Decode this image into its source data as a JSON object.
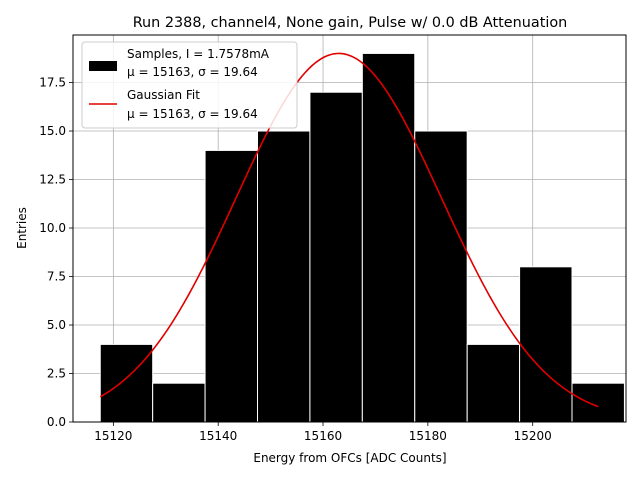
{
  "chart_data": {
    "type": "bar",
    "title": "Run 2388, channel4, None gain, Pulse w/ 0.0 dB Attenuation",
    "xlabel": "Energy from OFCs [ADC Counts]",
    "ylabel": "Entries",
    "xlim": [
      15112.3,
      15217.8
    ],
    "ylim": [
      0,
      19.95
    ],
    "grid": true,
    "legend_position": "top-left",
    "xticks": [
      15120,
      15140,
      15160,
      15180,
      15200
    ],
    "xtick_labels": [
      "15120",
      "15140",
      "15160",
      "15180",
      "15200"
    ],
    "yticks": [
      0,
      2.5,
      5,
      7.5,
      10,
      12.5,
      15,
      17.5
    ],
    "ytick_labels": [
      "0.0",
      "2.5",
      "5.0",
      "7.5",
      "10.0",
      "12.5",
      "15.0",
      "17.5"
    ],
    "bin_edges": [
      15117.5,
      15127.5,
      15137.5,
      15147.5,
      15157.5,
      15167.5,
      15177.5,
      15187.5,
      15197.5,
      15207.5,
      15217.5
    ],
    "histogram": {
      "name_line1": "Samples, I = 1.7578mA",
      "name_line2": "μ = 15163, σ = 19.64",
      "values": [
        4,
        2,
        14,
        15,
        17,
        19,
        15,
        4,
        8,
        2
      ],
      "color": "#000000",
      "edgecolor": "#ffffff"
    },
    "fit": {
      "name_line1": "Gaussian Fit",
      "name_line2": "μ = 15163, σ = 19.64",
      "mu": 15163,
      "sigma": 19.64,
      "amplitude": 19.0,
      "x_range": [
        15117.5,
        15212.5
      ],
      "color": "#e00000"
    }
  }
}
